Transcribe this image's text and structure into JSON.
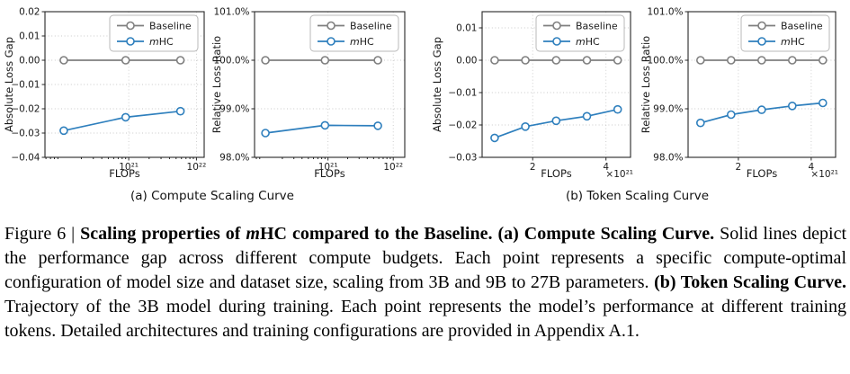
{
  "subcaptions": {
    "a": "(a) Compute Scaling Curve",
    "b": "(b) Token Scaling Curve"
  },
  "caption": {
    "segments": [
      {
        "t": "Figure 6 | ",
        "b": 0,
        "i": 0
      },
      {
        "t": "Scaling properties of ",
        "b": 1,
        "i": 0
      },
      {
        "t": "m",
        "b": 1,
        "i": 1
      },
      {
        "t": "HC compared to the Baseline. (a) Compute Scaling Curve.",
        "b": 1,
        "i": 0
      },
      {
        "t": " Solid lines depict the performance gap across different compute budgets. Each point represents a specific compute-optimal configuration of model size and dataset size, scaling from 3B and 9B to 27B parameters. ",
        "b": 0,
        "i": 0
      },
      {
        "t": "(b) Token Scaling Curve.",
        "b": 1,
        "i": 0
      },
      {
        "t": " Trajectory of the 3B model during training. Each point represents the model’s performance at different training tokens. Detailed architectures and training configurations are provided in Appendix A.1.",
        "b": 0,
        "i": 0
      }
    ]
  },
  "chart_data": [
    {
      "id": "compute-absolute-loss-gap",
      "type": "line",
      "group": "(a) Compute Scaling Curve",
      "xlabel": "FLOPs",
      "ylabel": "Absolute Loss Gap",
      "xscale": "log",
      "xlim": [
        5.8e+19,
        1.3e+22
      ],
      "ylim": [
        -0.04,
        0.02
      ],
      "xticks": [
        {
          "v": 1e+21,
          "label": "10²¹"
        },
        {
          "v": 1e+22,
          "label": "10²²"
        }
      ],
      "yticks": [
        {
          "v": 0.02,
          "label": "0.02"
        },
        {
          "v": 0.01,
          "label": "0.01"
        },
        {
          "v": 0.0,
          "label": "0.00"
        },
        {
          "v": -0.01,
          "label": "−0.01"
        },
        {
          "v": -0.02,
          "label": "−0.02"
        },
        {
          "v": -0.03,
          "label": "−0.03"
        },
        {
          "v": -0.04,
          "label": "−0.04"
        }
      ],
      "x_offset_label": "",
      "grid": true,
      "legend_position": "upper right",
      "x": [
        1.1e+20,
        9e+20,
        5.8e+21
      ],
      "series": [
        {
          "name": "Baseline",
          "legend_italic_prefix": "",
          "legend_text": "Baseline",
          "color": "#7f7f7f",
          "values": [
            0.0,
            0.0,
            0.0
          ]
        },
        {
          "name": "mHC",
          "legend_italic_prefix": "m",
          "legend_text": "HC",
          "color": "#2e7fbd",
          "values": [
            -0.029,
            -0.0235,
            -0.021
          ]
        }
      ]
    },
    {
      "id": "compute-relative-loss-ratio",
      "type": "line",
      "group": "(a) Compute Scaling Curve",
      "xlabel": "FLOPs",
      "ylabel": "Relative Loss Ratio",
      "xscale": "log",
      "xlim": [
        7.5e+19,
        1.5e+22
      ],
      "ylim": [
        98.0,
        101.0
      ],
      "xticks": [
        {
          "v": 1e+21,
          "label": "10²¹"
        },
        {
          "v": 1e+22,
          "label": "10²²"
        }
      ],
      "yticks": [
        {
          "v": 101.0,
          "label": "101.0%"
        },
        {
          "v": 100.0,
          "label": "100.0%"
        },
        {
          "v": 99.0,
          "label": "99.0%"
        },
        {
          "v": 98.0,
          "label": "98.0%"
        }
      ],
      "x_offset_label": "",
      "grid": true,
      "legend_position": "upper right",
      "x": [
        1.1e+20,
        9e+20,
        5.8e+21
      ],
      "series": [
        {
          "name": "Baseline",
          "legend_italic_prefix": "",
          "legend_text": "Baseline",
          "color": "#7f7f7f",
          "values": [
            100.0,
            100.0,
            100.0
          ]
        },
        {
          "name": "mHC",
          "legend_italic_prefix": "m",
          "legend_text": "HC",
          "color": "#2e7fbd",
          "values": [
            98.5,
            98.66,
            98.65
          ]
        }
      ]
    },
    {
      "id": "token-absolute-loss-gap",
      "type": "line",
      "group": "(b) Token Scaling Curve",
      "xlabel": "FLOPs",
      "ylabel": "Absolute Loss Gap",
      "xscale": "linear",
      "xlim": [
        0.62,
        4.67
      ],
      "ylim": [
        -0.03,
        0.015
      ],
      "xticks": [
        {
          "v": 2,
          "label": "2"
        },
        {
          "v": 4,
          "label": "4"
        }
      ],
      "yticks": [
        {
          "v": 0.01,
          "label": "0.01"
        },
        {
          "v": 0.0,
          "label": "0.00"
        },
        {
          "v": -0.01,
          "label": "−0.01"
        },
        {
          "v": -0.02,
          "label": "−0.02"
        },
        {
          "v": -0.03,
          "label": "−0.03"
        }
      ],
      "x_offset_label": "×10²¹",
      "grid": true,
      "legend_position": "upper right",
      "x": [
        0.96,
        1.8,
        2.64,
        3.48,
        4.32
      ],
      "series": [
        {
          "name": "Baseline",
          "legend_italic_prefix": "",
          "legend_text": "Baseline",
          "color": "#7f7f7f",
          "values": [
            0.0,
            0.0,
            0.0,
            0.0,
            0.0
          ]
        },
        {
          "name": "mHC",
          "legend_italic_prefix": "m",
          "legend_text": "HC",
          "color": "#2e7fbd",
          "values": [
            -0.024,
            -0.0205,
            -0.0187,
            -0.0173,
            -0.0152
          ]
        }
      ]
    },
    {
      "id": "token-relative-loss-ratio",
      "type": "line",
      "group": "(b) Token Scaling Curve",
      "xlabel": "FLOPs",
      "ylabel": "Relative Loss Ratio",
      "xscale": "linear",
      "xlim": [
        0.62,
        4.67
      ],
      "ylim": [
        98.0,
        101.0
      ],
      "xticks": [
        {
          "v": 2,
          "label": "2"
        },
        {
          "v": 4,
          "label": "4"
        }
      ],
      "yticks": [
        {
          "v": 101.0,
          "label": "101.0%"
        },
        {
          "v": 100.0,
          "label": "100.0%"
        },
        {
          "v": 99.0,
          "label": "99.0%"
        },
        {
          "v": 98.0,
          "label": "98.0%"
        }
      ],
      "x_offset_label": "×10²¹",
      "grid": true,
      "legend_position": "upper right",
      "x": [
        0.96,
        1.8,
        2.64,
        3.48,
        4.32
      ],
      "series": [
        {
          "name": "Baseline",
          "legend_italic_prefix": "",
          "legend_text": "Baseline",
          "color": "#7f7f7f",
          "values": [
            100.0,
            100.0,
            100.0,
            100.0,
            100.0
          ]
        },
        {
          "name": "mHC",
          "legend_italic_prefix": "m",
          "legend_text": "HC",
          "color": "#2e7fbd",
          "values": [
            98.71,
            98.88,
            98.98,
            99.06,
            99.12
          ]
        }
      ]
    }
  ]
}
